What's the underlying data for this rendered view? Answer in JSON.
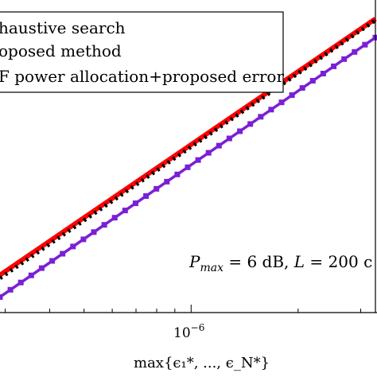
{
  "chart_data": {
    "type": "line",
    "x_scale": "log",
    "xlabel": "max{ϵ₁*, ..., ϵ_N*}",
    "x_ticks": [
      {
        "value": 1e-06,
        "base": "10",
        "exponent": "−6"
      }
    ],
    "annotation": {
      "parts": [
        {
          "text": "P",
          "style": "italic"
        },
        {
          "text": "max",
          "style": "sub-italic"
        },
        {
          "text": " = 6 dB, ",
          "style": "normal"
        },
        {
          "text": "L",
          "style": "italic"
        },
        {
          "text": " = 200 c",
          "style": "normal"
        }
      ]
    },
    "legend": {
      "placement": "top-left",
      "entries": [
        {
          "label": "haustive search",
          "color": "#ff0000",
          "style": "solid"
        },
        {
          "label": "oposed method",
          "color": "#000000",
          "style": "dotted"
        },
        {
          "label": "F power allocation+proposed error",
          "color": "#7a1fd6",
          "style": "solid-markers"
        }
      ]
    },
    "series": [
      {
        "name": "haustive search",
        "color": "#ff0000",
        "style": "solid",
        "x": [
          2.9e-07,
          3.3e-06
        ],
        "y": [
          0.12,
          0.94
        ]
      },
      {
        "name": "oposed method",
        "color": "#000000",
        "style": "dotted",
        "x": [
          2.9e-07,
          3.3e-06
        ],
        "y": [
          0.11,
          0.935
        ]
      },
      {
        "name": "F power allocation+proposed error",
        "color": "#7a1fd6",
        "style": "solid-markers",
        "x": [
          2.9e-07,
          3.3e-06
        ],
        "y": [
          0.05,
          0.88
        ],
        "marker_count": 37
      }
    ],
    "xlim": [
      2.9e-07,
      3.3e-06
    ],
    "ylim": [
      0,
      1
    ]
  }
}
